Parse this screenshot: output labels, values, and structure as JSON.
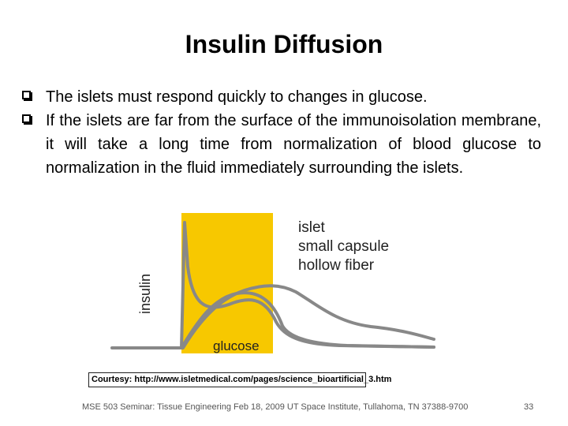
{
  "slide": {
    "title": "Insulin Diffusion",
    "bullets": [
      "The islets must respond quickly to changes in glucose.",
      "If the islets are far from the surface of the immunoisolation membrane, it will take a long time from normalization of blood glucose to normalization in the fluid immediately surrounding the islets."
    ]
  },
  "figure": {
    "ylabel": "insulin",
    "glucose_label": "glucose",
    "legend": [
      "islet",
      "small capsule",
      "hollow fiber"
    ],
    "colors": {
      "glucose_band": "#f7c800",
      "curves": "#888888"
    }
  },
  "credit": "Courtesy: http://www.isletmedical.com/pages/science_bioartificial_3.htm",
  "footer": "MSE 503 Seminar: Tissue Engineering  Feb 18, 2009  UT Space Institute, Tullahoma, TN 37388-9700",
  "page_number": "33"
}
